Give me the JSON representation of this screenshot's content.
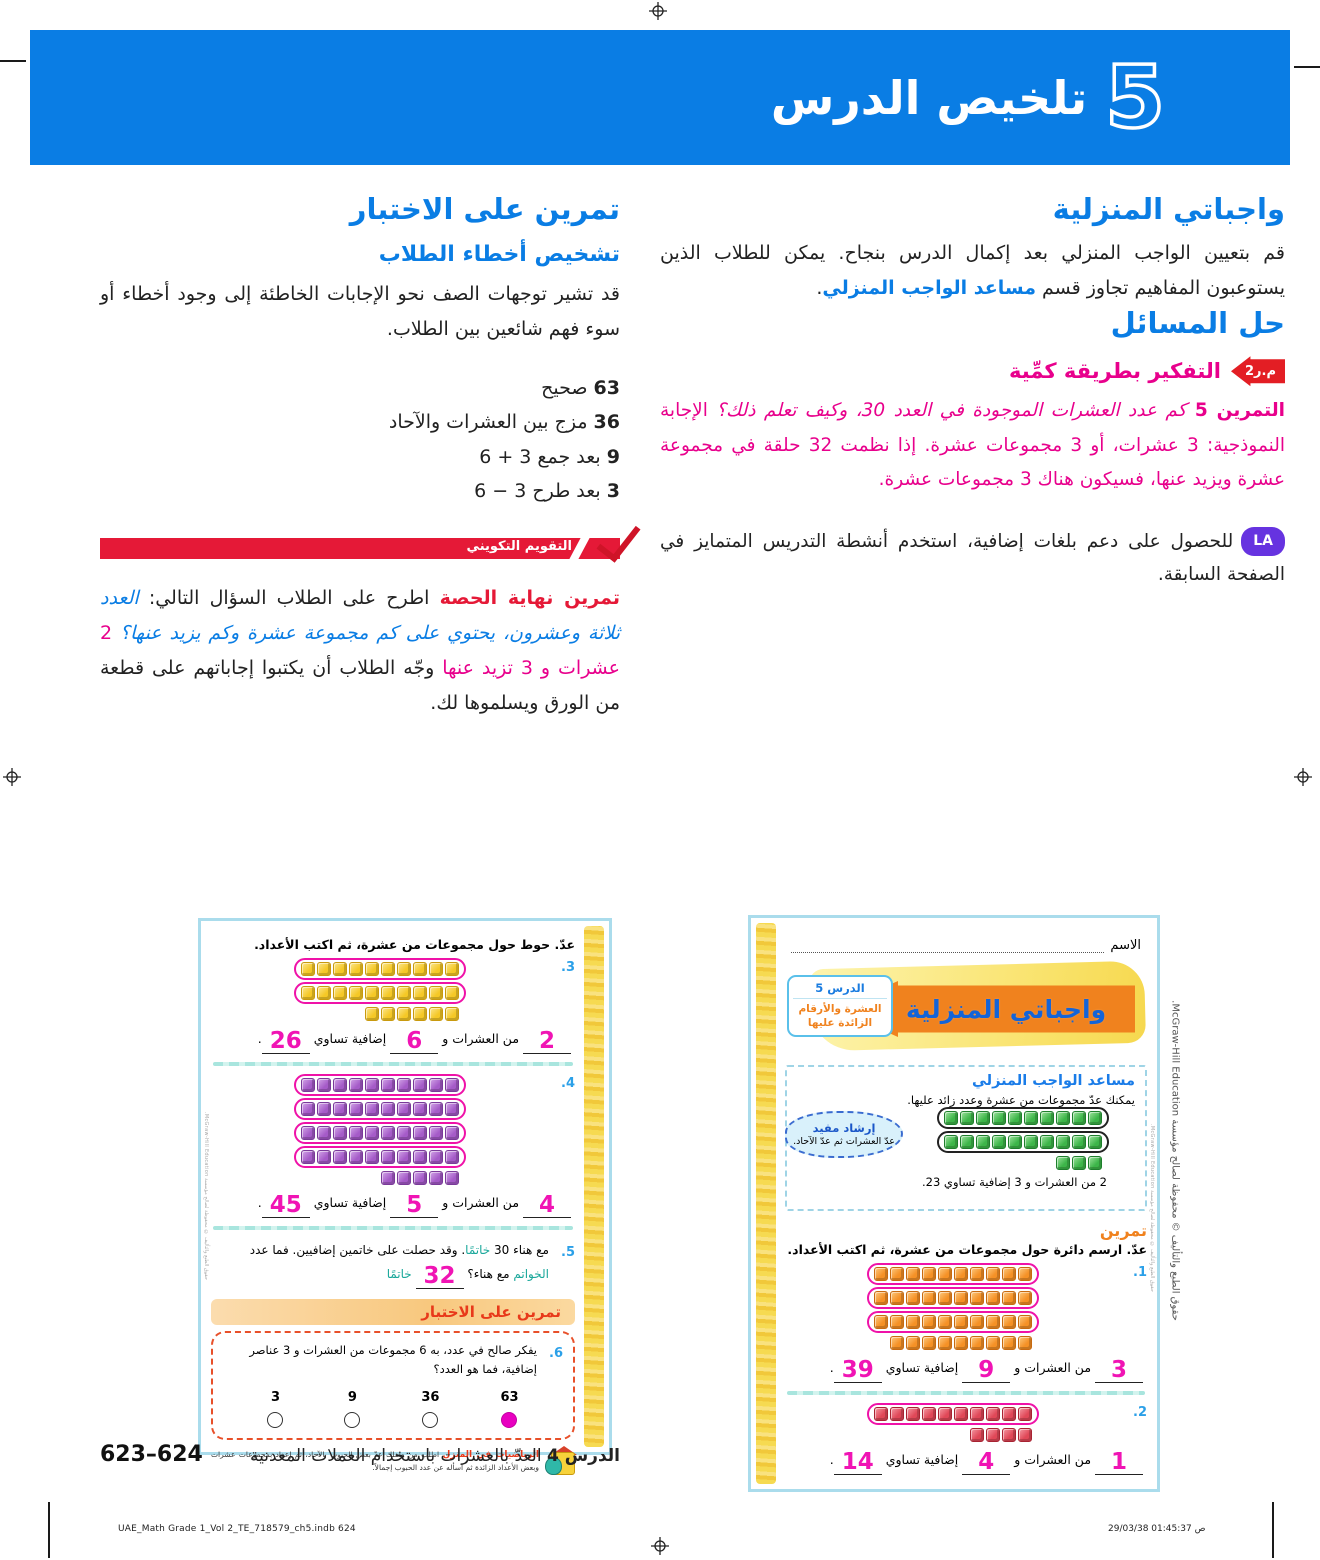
{
  "header": {
    "number": "5",
    "title": "تلخيص الدرس"
  },
  "right_column": {
    "homework": {
      "title": "واجباتي المنزلية",
      "body_before": "قم بتعيين الواجب المنزلي بعد إكمال الدرس بنجاح. يمكن للطلاب الذين يستوعبون المفاهيم تجاوز قسم ",
      "body_highlight": "مساعد الواجب المنزلي",
      "body_after": "."
    },
    "problem_solving": {
      "title": "حل المسائل",
      "badge": "م.ر2",
      "strategy": "التفكير بطريقة كمِّية",
      "exercise_label": "التمرين 5",
      "question": " كم عدد العشرات الموجودة في العدد 30، وكيف تعلم ذلك؟ ",
      "answer": "الإجابة النموذجية: 3 عشرات، أو 3 مجموعات عشرة. إذا نظمت 32 حلقة في مجموعة عشرة ويزيد عنها، فسيكون هناك 3 مجموعات عشرة."
    },
    "language_support": {
      "badge": "LA",
      "text": "للحصول على دعم بلغات إضافية، استخدم أنشطة التدريس المتمايز في الصفحة السابقة."
    }
  },
  "left_column": {
    "test_practice": {
      "title": "تمرين على الاختبار",
      "subtitle": "تشخيص أخطاء الطلاب",
      "body": "قد تشير توجهات الصف نحو الإجابات الخاطئة إلى وجود أخطاء أو سوء فهم شائعين بين الطلاب.",
      "error_items": [
        {
          "value": "63",
          "desc": " صحيح"
        },
        {
          "value": "36",
          "desc": " مزج بين العشرات والآحاد"
        },
        {
          "value": "9",
          "desc": " بعد جمع 3 + 6"
        },
        {
          "value": "3",
          "desc": " بعد طرح 3 − 6"
        }
      ]
    },
    "formative": {
      "banner": "التقويم التكويني",
      "lead": "تمرين نهاية الحصة",
      "text1": " اطرح على الطلاب السؤال التالي: ",
      "question": "العدد ثلاثة وعشرون، يحتوي على كم مجموعة عشرة وكم يزيد عنها؟ ",
      "answer": "2 عشرات و 3 تزيد عنها ",
      "text2": "وجّه الطلاب أن يكتبوا إجاباتهم على قطعة من الورق ويسلموها لك."
    }
  },
  "homework_sheet": {
    "name_label": "الاسم",
    "banner_title": "واجباتي المنزلية",
    "lesson_tag": {
      "lesson": "الدرس 5",
      "topic": "العشرة والأرقام الزائدة عليها"
    },
    "helper": {
      "title": "مساعد الواجب المنزلي",
      "intro": "يمكنك عدّ مجموعات من عشرة وعدد زائد عليها.",
      "hint_title": "إرشاد مفيد",
      "hint_text": "عدّ العشرات ثم عدّ الآحاد.",
      "example_line": "2 من العشرات و 3 إضافية تساوي 23.",
      "blocks": {
        "color": "green",
        "rows_of_ten": 2,
        "extras": 3
      }
    },
    "practice_title": "تمرين",
    "instruction": "عدّ. ارسم دائرة حول مجموعات من عشرة، ثم اكتب الأعداد.",
    "exercises": [
      {
        "num": "1.",
        "blocks": {
          "color": "orange",
          "rows_of_ten": 3,
          "extras": 9
        },
        "tens": "3",
        "ones": "9",
        "total": "39"
      },
      {
        "num": "2.",
        "blocks": {
          "color": "red",
          "rows_of_ten": 1,
          "extras": 4
        },
        "tens": "1",
        "ones": "4",
        "total": "14"
      }
    ]
  },
  "practice_sheet": {
    "instruction": "عدّ. حوط حول مجموعات من عشرة، ثم اكتب الأعداد.",
    "exercises": [
      {
        "num": "3.",
        "blocks": {
          "color": "yellow",
          "rows_of_ten": 2,
          "extras": 6
        },
        "tens": "2",
        "ones": "6",
        "total": "26"
      },
      {
        "num": "4.",
        "blocks": {
          "color": "purple",
          "rows_of_ten": 4,
          "extras": 5
        },
        "tens": "4",
        "ones": "5",
        "total": "45"
      }
    ],
    "word_problem": {
      "num": "5.",
      "t1": "مع هناء 30 ",
      "teal1": "خاتمًا",
      "t2": ". وقد حصلت على خاتمين إضافيين. فما عدد ",
      "teal2": "الخواتم",
      "t3": " مع هناء؟ ",
      "answer": "32",
      "teal3": " خاتمًا"
    },
    "test_practice": {
      "title": "تمرين على الاختبار",
      "question_num": "6.",
      "question": "يفكر صالح في عدد، به 6 مجموعات من العشرات و 3 عناصر إضافية، فما هو العدد؟",
      "options": [
        {
          "label": "63",
          "selected": true
        },
        {
          "label": "36",
          "selected": false
        },
        {
          "label": "9",
          "selected": false
        },
        {
          "label": "3",
          "selected": false
        }
      ]
    },
    "home_math": {
      "title": "الرياضيات في المنزل",
      "text": " اطلب من طفلك عدّ بعض الحبوب بالآحاد، ثم إعداد بمجموعات عشرات وبعض الأعداد الزائدة ثم اسأله عن عدد الحبوب إجمالاً."
    }
  },
  "answer_template": {
    "p1": " من العشرات و ",
    "p2": " إضافية تساوي ",
    "dot": "."
  },
  "footer": {
    "lesson_ref_bold": "الدرس 4",
    "lesson_ref": " العدّ بالعشرات باستخدام العملات المعدنية",
    "pages": "623–624"
  },
  "print_info": {
    "file": "UAE_Math Grade 1_Vol 2_TE_718579_ch5.indb   624",
    "timestamp": "29/03/38   01:45:37 ص",
    "side_copyright": "حقوق الطبع والتأليف © محفوظة لصالح مؤسسة McGraw-Hill Education."
  },
  "colors": {
    "header_blue": "#0a7de4",
    "accent_magenta": "#e8008c",
    "answer_magenta": "#f014b4",
    "accent_red": "#e51937",
    "teal": "#18a79a",
    "purple_badge": "#6633e0",
    "orange": "#f0821e"
  },
  "block_colors": {
    "green": {
      "base": "#3db549",
      "light": "#9fe39f",
      "dark": "#1e7f2c"
    },
    "orange": {
      "base": "#f59126",
      "light": "#fcc97f",
      "dark": "#c86a10"
    },
    "red": {
      "base": "#e04858",
      "light": "#f49aa4",
      "dark": "#a82332"
    },
    "yellow": {
      "base": "#f5c826",
      "light": "#fbe68e",
      "dark": "#c99a0e"
    },
    "purple": {
      "base": "#a55bc8",
      "light": "#d3a6e8",
      "dark": "#7a3a99"
    }
  }
}
